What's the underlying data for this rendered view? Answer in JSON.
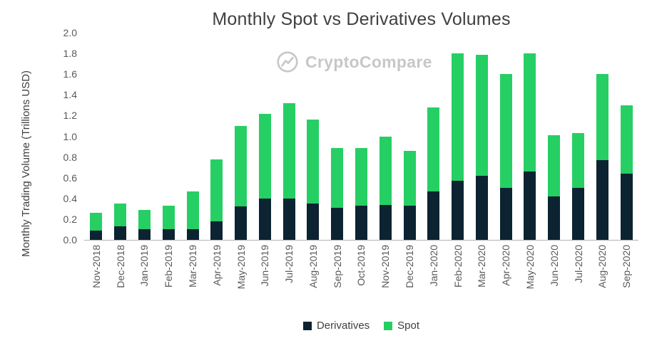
{
  "watermark": "CryptoCompare",
  "chart_data": {
    "type": "bar",
    "stacked": true,
    "title": "Monthly Spot vs Derivatives Volumes",
    "ylabel": "Monthly Trading Volume (Trillions USD)",
    "xlabel": "",
    "ylim": [
      0,
      2
    ],
    "ytick_labels": [
      "0.0",
      "0.2",
      "0.4",
      "0.6",
      "0.8",
      "1.0",
      "1.2",
      "1.4",
      "1.6",
      "1.8",
      "2.0"
    ],
    "grid": false,
    "legend_position": "bottom-center",
    "categories": [
      "Nov-2018",
      "Dec-2018",
      "Jan-2019",
      "Feb-2019",
      "Mar-2019",
      "Apr-2019",
      "May-2019",
      "Jun-2019",
      "Jul-2019",
      "Aug-2019",
      "Sep-2019",
      "Oct-2019",
      "Nov-2019",
      "Dec-2019",
      "Jan-2020",
      "Feb-2020",
      "Mar-2020",
      "Apr-2020",
      "May-2020",
      "Jun-2020",
      "Jul-2020",
      "Aug-2020",
      "Sep-2020"
    ],
    "series": [
      {
        "name": "Derivatives",
        "color": "#0c2331",
        "values": [
          0.09,
          0.13,
          0.1,
          0.1,
          0.1,
          0.18,
          0.32,
          0.4,
          0.4,
          0.35,
          0.31,
          0.33,
          0.34,
          0.33,
          0.47,
          0.57,
          0.62,
          0.5,
          0.66,
          0.42,
          0.5,
          0.77,
          0.64
        ]
      },
      {
        "name": "Spot",
        "color": "#26cf63",
        "values": [
          0.17,
          0.22,
          0.19,
          0.23,
          0.37,
          0.6,
          0.78,
          0.82,
          0.92,
          0.81,
          0.58,
          0.56,
          0.66,
          0.53,
          0.81,
          1.23,
          1.17,
          1.1,
          1.14,
          0.59,
          0.53,
          0.83,
          0.66
        ]
      }
    ]
  },
  "colors": {
    "title_text": "#404040",
    "axis_text": "#595959",
    "axis_line": "#b3b3b3",
    "watermark_gray": "#c5c8ca",
    "background": "#ffffff"
  }
}
